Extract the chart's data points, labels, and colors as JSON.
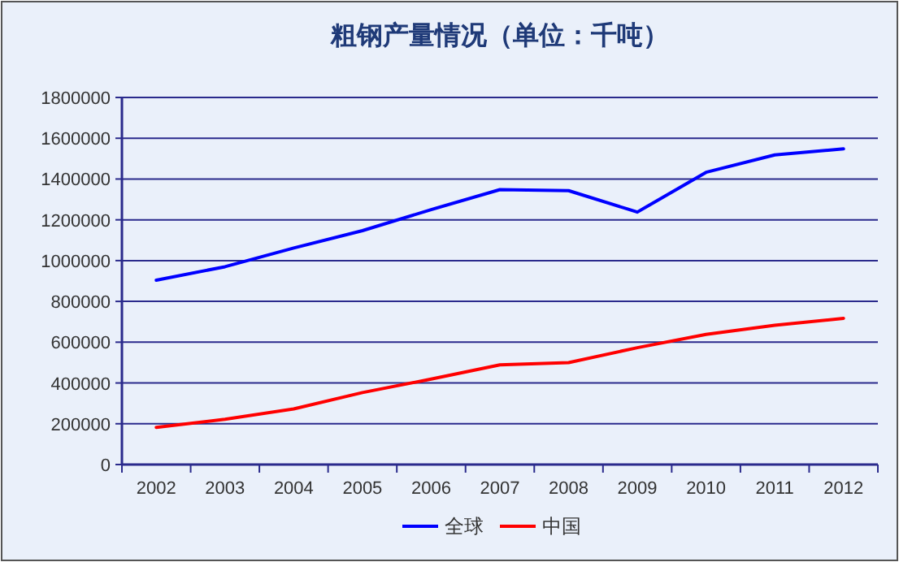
{
  "chart_data": {
    "type": "line",
    "title": "粗钢产量情况（单位：千吨）",
    "categories": [
      "2002",
      "2003",
      "2004",
      "2005",
      "2006",
      "2007",
      "2008",
      "2009",
      "2010",
      "2011",
      "2012"
    ],
    "series": [
      {
        "name": "全球",
        "color": "#0000ff",
        "values": [
          904000,
          970000,
          1062000,
          1147000,
          1250000,
          1348000,
          1343000,
          1238000,
          1433000,
          1518000,
          1548000
        ]
      },
      {
        "name": "中国",
        "color": "#ff0000",
        "values": [
          182000,
          222000,
          273000,
          353000,
          419000,
          489000,
          500000,
          573000,
          638000,
          683000,
          717000
        ]
      }
    ],
    "ylim": [
      0,
      1800000
    ],
    "yticks": [
      0,
      200000,
      400000,
      600000,
      800000,
      1000000,
      1200000,
      1400000,
      1600000,
      1800000
    ],
    "grid": "y",
    "legend": "bottom",
    "marker": "none",
    "line_style": "solid"
  }
}
